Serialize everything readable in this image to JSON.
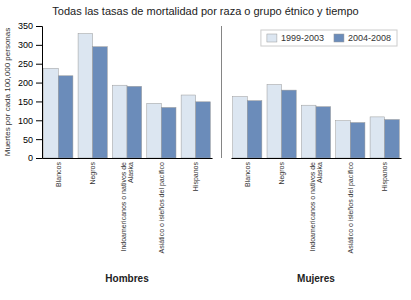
{
  "chart_data": {
    "type": "bar",
    "title": "Todas las tasas de mortalidad por raza o grupo étnico y tiempo",
    "ylabel": "Muertes por cada 100,000 personas",
    "groups": [
      "Hombres",
      "Mujeres"
    ],
    "categories": [
      "Blancos",
      "Negros",
      "Indoamericanos o nativos de\nAlaska",
      "Asiático o isleños del pacífico",
      "Hispanos",
      "Blancos",
      "Negros",
      "Indoamericanos o nativos de\nAlaska",
      "Asiático o isleños del pacífico",
      "Hispanos"
    ],
    "series": [
      {
        "name": "1999-2003",
        "color": "#dce6f1",
        "values": [
          238,
          330,
          193,
          145,
          167,
          163,
          195,
          140,
          99,
          109
        ]
      },
      {
        "name": "2004-2008",
        "color": "#6b8cba",
        "values": [
          218,
          295,
          190,
          134,
          149,
          152,
          180,
          136,
          94,
          102
        ]
      }
    ],
    "ylim": [
      0,
      350
    ],
    "yticks": [
      0,
      50,
      100,
      150,
      200,
      250,
      300,
      350
    ],
    "grid": false,
    "legend": "upper right"
  }
}
